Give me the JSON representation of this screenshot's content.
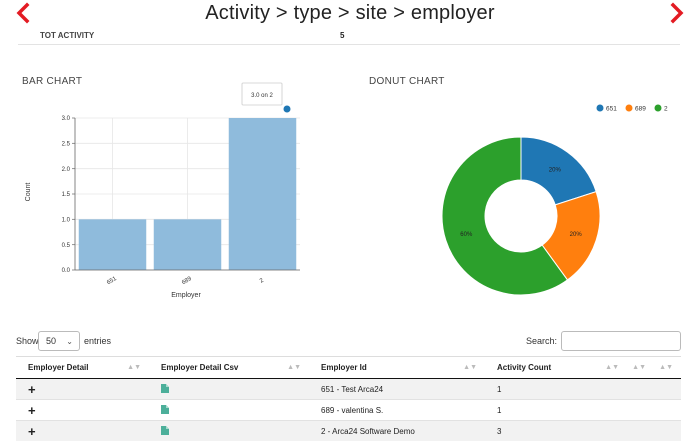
{
  "header": {
    "title": "Activity > type > site > employer"
  },
  "totals": {
    "label": "TOT ACTIVITY",
    "value": "5"
  },
  "bar_chart": {
    "title": "BAR CHART",
    "tooltip": "3.0 on 2",
    "accent": "#1f77b4",
    "bar_color": "#8fbbdc"
  },
  "donut_chart": {
    "title": "DONUT CHART",
    "colors": [
      "#1f77b4",
      "#ff7f0e",
      "#2ca02c"
    ]
  },
  "chart_data": [
    {
      "type": "bar",
      "categories": [
        "651",
        "689",
        "2"
      ],
      "values": [
        1,
        1,
        3
      ],
      "xlabel": "Employer",
      "ylabel": "Count",
      "ylim": [
        0,
        3
      ],
      "yticks": [
        "0.0",
        "0.5",
        "1.0",
        "1.5",
        "2.0",
        "2.5",
        "3.0"
      ],
      "grid": true
    },
    {
      "type": "pie",
      "subtype": "donut",
      "labels": [
        "651",
        "689",
        "2"
      ],
      "values": [
        20,
        20,
        60
      ],
      "value_labels": [
        "20%",
        "20%",
        "60%"
      ],
      "legend_placement": "top-right"
    }
  ],
  "table_controls": {
    "show_label": "Show",
    "entries_value": "50",
    "entries_label": "entries",
    "search_label": "Search:",
    "search_value": "",
    "search_placeholder": ""
  },
  "table": {
    "columns": [
      "Employer Detail",
      "Employer Detail Csv",
      "Employer Id",
      "Activity Count",
      "",
      ""
    ],
    "rows": [
      {
        "expand": "+",
        "employer_id": "651 - Test Arca24",
        "activity_count": "1",
        "csv_icon": "file-icon"
      },
      {
        "expand": "+",
        "employer_id": "689 - valentina S.",
        "activity_count": "1",
        "csv_icon": "file-icon"
      },
      {
        "expand": "+",
        "employer_id": "2 - Arca24 Software Demo",
        "activity_count": "3",
        "csv_icon": "file-icon"
      }
    ]
  }
}
